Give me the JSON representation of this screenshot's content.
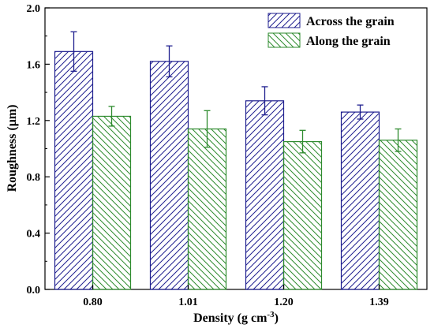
{
  "chart_data": {
    "type": "bar",
    "categories": [
      "0.80",
      "1.01",
      "1.20",
      "1.39"
    ],
    "series": [
      {
        "name": "Across the grain",
        "values": [
          1.69,
          1.62,
          1.34,
          1.26
        ],
        "errors": [
          0.14,
          0.11,
          0.1,
          0.05
        ],
        "color": "#1f1f8f",
        "pattern": "hatch-forward"
      },
      {
        "name": "Along the grain",
        "values": [
          1.23,
          1.14,
          1.05,
          1.06
        ],
        "errors": [
          0.07,
          0.13,
          0.08,
          0.08
        ],
        "color": "#2e8b2e",
        "pattern": "hatch-backward"
      }
    ],
    "ylim": [
      0,
      2.0
    ],
    "yticks": [
      "0.0",
      "0.4",
      "0.8",
      "1.2",
      "1.6",
      "2.0"
    ],
    "xlabel": "Density (g cm",
    "xlabel_sup": "-3",
    "xlabel_end": ")",
    "ylabel": "Roughness (μm)",
    "legend_position": "top-right",
    "grid": false
  }
}
